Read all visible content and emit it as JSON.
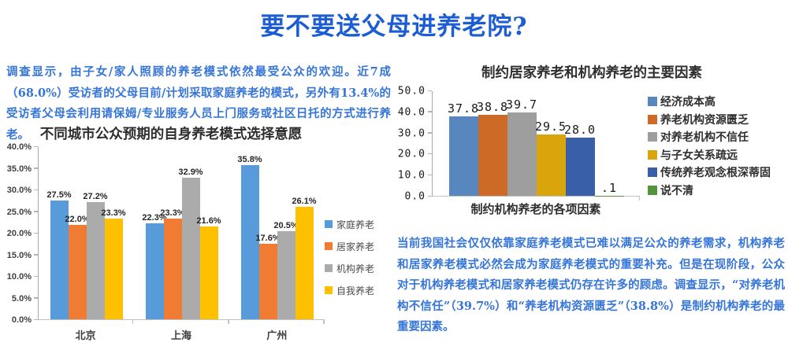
{
  "title": "要不要送父母进养老院?",
  "intro_text": "调查显示，由子女/家人照顾的养老模式依然最受公众的欢迎。近7成（68.0%）受访者的父母目前/计划采取家庭养老的模式，另外有13.4%的受访者父母会利用请保姆/专业服务人员上门服务或社区日托的方式进行养老。",
  "conclusion_text": "当前我国社会仅仅依靠家庭养老模式已难以满足公众的养老需求，机构养老和居家养老模式必然会成为家庭养老模式的重要补充。但是在现阶段，公众对于机构养老模式和居家养老模式仍存在许多的顾虑。调查显示，“对养老机构不信任”（39.7%）和“养老机构资源匮乏”（38.8%）是制约机构养老的最重要因素。",
  "theme": {
    "title_color": "#1c5dd4",
    "paragraph_color": "#3575d8",
    "axis_color": "#c2c2c2"
  },
  "chart_data": [
    {
      "type": "bar",
      "title": "不同城市公众预期的自身养老模式选择意愿",
      "categories": [
        "北京",
        "上海",
        "广州"
      ],
      "ylim": [
        0,
        40
      ],
      "ytick_step": 5,
      "yticks": [
        "0.0%",
        "5.0%",
        "10.0%",
        "15.0%",
        "20.0%",
        "25.0%",
        "30.0%",
        "35.0%",
        "40.0%"
      ],
      "grid": false,
      "legend_position": "right",
      "series": [
        {
          "name": "家庭养老",
          "color": "#579bda",
          "values": [
            27.5,
            22.3,
            35.8
          ],
          "labels": [
            "27.5%",
            "22.3%",
            "35.8%"
          ]
        },
        {
          "name": "居家养老",
          "color": "#f07b33",
          "values": [
            22.0,
            23.3,
            17.6
          ],
          "labels": [
            "22.0%",
            "23.3%",
            "17.6%"
          ]
        },
        {
          "name": "机构养老",
          "color": "#ababab",
          "values": [
            27.2,
            32.9,
            20.5
          ],
          "labels": [
            "27.2%",
            "32.9%",
            "20.5%"
          ]
        },
        {
          "name": "自我养老",
          "color": "#ffc000",
          "values": [
            23.3,
            21.6,
            26.1
          ],
          "labels": [
            "23.3%",
            "21.6%",
            "26.1%"
          ]
        }
      ]
    },
    {
      "type": "bar",
      "title": "制约居家养老和机构养老的主要因素",
      "xlabel": "制约机构养老的各项因素",
      "categories": [
        "制约机构养老的各项因素"
      ],
      "ylim": [
        0,
        50
      ],
      "ytick_step": 10,
      "yticks": [
        "0.0",
        "10.0",
        "20.0",
        "30.0",
        "40.0",
        "50.0"
      ],
      "grid": false,
      "legend_position": "right",
      "series": [
        {
          "name": "经济成本高",
          "color": "#5787be",
          "values": [
            37.8
          ],
          "labels": [
            "37.8"
          ]
        },
        {
          "name": "养老机构资源匮乏",
          "color": "#ce6a28",
          "values": [
            38.8
          ],
          "labels": [
            "38.8"
          ]
        },
        {
          "name": "对养老机构不信任",
          "color": "#9e9e9e",
          "values": [
            39.7
          ],
          "labels": [
            "39.7"
          ]
        },
        {
          "name": "与子女关系疏远",
          "color": "#d9a50b",
          "values": [
            29.5
          ],
          "labels": [
            "29.5"
          ]
        },
        {
          "name": "传统养老观念根深蒂固",
          "color": "#3a5fa9",
          "values": [
            28.0
          ],
          "labels": [
            "28.0"
          ]
        },
        {
          "name": "说不清",
          "color": "#55933d",
          "values": [
            0.1
          ],
          "labels": [
            ".1"
          ]
        }
      ]
    }
  ]
}
